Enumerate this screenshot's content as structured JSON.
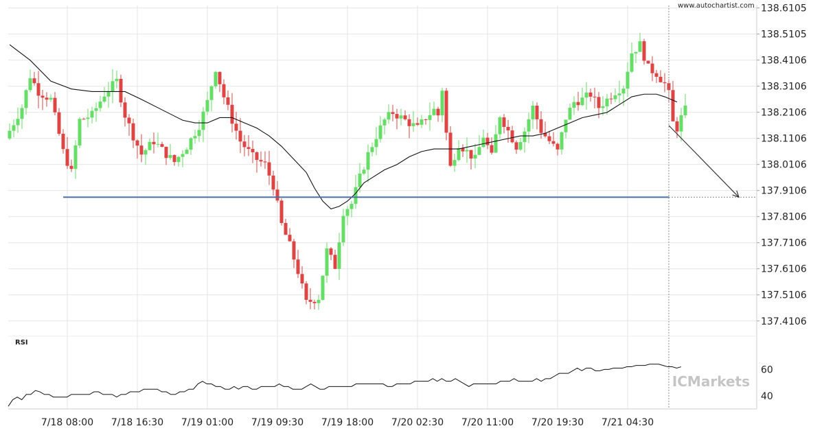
{
  "watermark_url": "www.autochartist.com",
  "brand": "ICMarkets",
  "colors": {
    "up": "#66dd66",
    "down": "#dd4444",
    "support": "#4a6fa8",
    "ma": "#111111",
    "rsi": "#111111",
    "grid": "#e6e6e6",
    "panel_bg": "#ffffff",
    "axis_text": "#222222",
    "brand": "#bbbbbb"
  },
  "chart_data": [
    {
      "type": "candlestick",
      "title": "",
      "price_axis": {
        "range": [
          137.36,
          138.62
        ],
        "ticks": [
          "138.6105",
          "138.5105",
          "138.4106",
          "138.3106",
          "138.2106",
          "138.1106",
          "138.0106",
          "137.9106",
          "137.8106",
          "137.7106",
          "137.6106",
          "137.5106",
          "137.4106"
        ]
      },
      "time_axis": {
        "bar_count": 200,
        "labels": [
          {
            "bar": 14,
            "text": "7/18 08:00"
          },
          {
            "bar": 31,
            "text": "7/18 16:30"
          },
          {
            "bar": 48,
            "text": "7/19 01:00"
          },
          {
            "bar": 65,
            "text": "7/19 09:30"
          },
          {
            "bar": 82,
            "text": "7/19 18:00"
          },
          {
            "bar": 99,
            "text": "7/20 02:30"
          },
          {
            "bar": 116,
            "text": "7/20 11:00"
          },
          {
            "bar": 133,
            "text": "7/20 19:30"
          },
          {
            "bar": 150,
            "text": "7/21 04:30"
          }
        ]
      },
      "close_path": [
        [
          0,
          138.14
        ],
        [
          3,
          138.23
        ],
        [
          5,
          138.35
        ],
        [
          7,
          138.29
        ],
        [
          10,
          138.26
        ],
        [
          13,
          138.06
        ],
        [
          15,
          137.98
        ],
        [
          17,
          138.18
        ],
        [
          20,
          138.2
        ],
        [
          23,
          138.28
        ],
        [
          26,
          138.33
        ],
        [
          28,
          138.2
        ],
        [
          30,
          138.12
        ],
        [
          32,
          138.05
        ],
        [
          35,
          138.1
        ],
        [
          38,
          138.05
        ],
        [
          40,
          138.02
        ],
        [
          43,
          138.08
        ],
        [
          46,
          138.16
        ],
        [
          48,
          138.25
        ],
        [
          50,
          138.38
        ],
        [
          52,
          138.27
        ],
        [
          54,
          138.18
        ],
        [
          56,
          138.1
        ],
        [
          59,
          138.04
        ],
        [
          62,
          138.01
        ],
        [
          64,
          137.93
        ],
        [
          66,
          137.78
        ],
        [
          68,
          137.7
        ],
        [
          70,
          137.6
        ],
        [
          72,
          137.48
        ],
        [
          75,
          137.5
        ],
        [
          77,
          137.68
        ],
        [
          79,
          137.62
        ],
        [
          81,
          137.83
        ],
        [
          83,
          137.86
        ],
        [
          85,
          137.96
        ],
        [
          87,
          138.05
        ],
        [
          89,
          138.12
        ],
        [
          91,
          138.18
        ],
        [
          93,
          138.21
        ],
        [
          95,
          138.19
        ],
        [
          97,
          138.17
        ],
        [
          99,
          138.15
        ],
        [
          101,
          138.19
        ],
        [
          103,
          138.22
        ],
        [
          104,
          138.2
        ],
        [
          105,
          138.3
        ],
        [
          106,
          138.13
        ],
        [
          107,
          138.0
        ],
        [
          109,
          138.09
        ],
        [
          111,
          138.06
        ],
        [
          113,
          138.03
        ],
        [
          115,
          138.12
        ],
        [
          117,
          138.04
        ],
        [
          119,
          138.2
        ],
        [
          121,
          138.14
        ],
        [
          123,
          138.08
        ],
        [
          125,
          138.14
        ],
        [
          127,
          138.23
        ],
        [
          129,
          138.14
        ],
        [
          131,
          138.1
        ],
        [
          133,
          138.06
        ],
        [
          135,
          138.19
        ],
        [
          137,
          138.25
        ],
        [
          139,
          138.26
        ],
        [
          141,
          138.28
        ],
        [
          143,
          138.23
        ],
        [
          145,
          138.26
        ],
        [
          147,
          138.29
        ],
        [
          149,
          138.31
        ],
        [
          151,
          138.44
        ],
        [
          153,
          138.47
        ],
        [
          155,
          138.38
        ],
        [
          157,
          138.36
        ],
        [
          159,
          138.32
        ],
        [
          160,
          138.28
        ],
        [
          161,
          138.17
        ],
        [
          162,
          138.15
        ],
        [
          163,
          138.19
        ],
        [
          164,
          138.22
        ]
      ],
      "moving_average_path": [
        [
          0,
          138.47
        ],
        [
          5,
          138.41
        ],
        [
          10,
          138.33
        ],
        [
          15,
          138.3
        ],
        [
          20,
          138.29
        ],
        [
          25,
          138.29
        ],
        [
          28,
          138.29
        ],
        [
          32,
          138.26
        ],
        [
          37,
          138.22
        ],
        [
          42,
          138.18
        ],
        [
          45,
          138.17
        ],
        [
          48,
          138.17
        ],
        [
          51,
          138.19
        ],
        [
          54,
          138.19
        ],
        [
          57,
          138.17
        ],
        [
          60,
          138.15
        ],
        [
          63,
          138.12
        ],
        [
          66,
          138.08
        ],
        [
          69,
          138.03
        ],
        [
          72,
          137.98
        ],
        [
          74,
          137.92
        ],
        [
          76,
          137.87
        ],
        [
          78,
          137.84
        ],
        [
          80,
          137.85
        ],
        [
          82,
          137.87
        ],
        [
          84,
          137.9
        ],
        [
          86,
          137.94
        ],
        [
          88,
          137.96
        ],
        [
          91,
          137.99
        ],
        [
          94,
          138.01
        ],
        [
          97,
          138.04
        ],
        [
          100,
          138.06
        ],
        [
          103,
          138.07
        ],
        [
          106,
          138.07
        ],
        [
          109,
          138.07
        ],
        [
          112,
          138.08
        ],
        [
          115,
          138.09
        ],
        [
          118,
          138.1
        ],
        [
          121,
          138.11
        ],
        [
          124,
          138.12
        ],
        [
          127,
          138.12
        ],
        [
          130,
          138.13
        ],
        [
          133,
          138.15
        ],
        [
          136,
          138.17
        ],
        [
          139,
          138.19
        ],
        [
          142,
          138.2
        ],
        [
          145,
          138.21
        ],
        [
          148,
          138.24
        ],
        [
          151,
          138.27
        ],
        [
          154,
          138.28
        ],
        [
          157,
          138.28
        ],
        [
          159,
          138.27
        ],
        [
          162,
          138.25
        ]
      ],
      "support_level": {
        "price": 137.885,
        "from_bar": 13,
        "to_bar": 160
      },
      "forecast_arrow": {
        "from": [
          160,
          138.16
        ],
        "to": [
          177,
          137.885
        ]
      },
      "current_marker_bar": 160
    },
    {
      "type": "line",
      "title": "RSI",
      "range": [
        30,
        80
      ],
      "ticks": [
        "60",
        "40"
      ],
      "values": [
        32,
        37,
        39,
        37,
        41,
        41,
        44,
        43,
        41,
        41,
        39,
        39,
        39,
        39,
        41,
        41,
        41,
        41,
        41,
        43,
        43,
        41,
        41,
        41,
        39,
        41,
        41,
        43,
        43,
        43,
        45,
        45,
        45,
        45,
        43,
        43,
        41,
        41,
        43,
        43,
        45,
        45,
        49,
        51,
        49,
        49,
        47,
        47,
        45,
        45,
        47,
        45,
        47,
        47,
        45,
        45,
        47,
        47,
        47,
        47,
        49,
        47,
        47,
        45,
        45,
        45,
        47,
        49,
        47,
        45,
        45,
        47,
        47,
        47,
        47,
        47,
        47,
        49,
        49,
        49,
        49,
        49,
        49,
        49,
        47,
        47,
        49,
        49,
        49,
        49,
        51,
        51,
        51,
        51,
        53,
        51,
        53,
        51,
        51,
        53,
        51,
        49,
        47,
        49,
        49,
        49,
        49,
        49,
        49,
        51,
        51,
        51,
        53,
        51,
        51,
        51,
        51,
        53,
        51,
        53,
        53,
        55,
        57,
        57,
        57,
        59,
        61,
        59,
        61,
        61,
        59,
        59,
        60,
        60,
        61,
        61,
        61,
        62,
        62,
        63,
        63,
        63,
        64,
        64,
        64,
        63,
        62,
        62,
        61,
        62
      ]
    }
  ]
}
